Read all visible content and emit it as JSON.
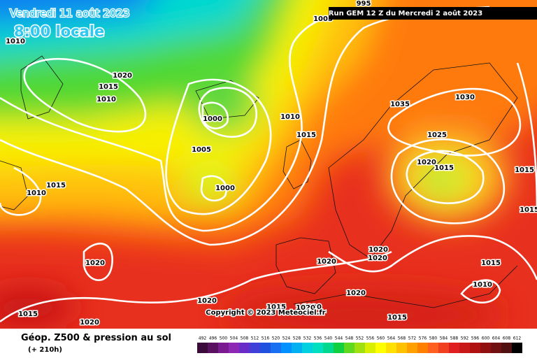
{
  "header": {
    "valid_date": "Vendredi 11 août 2023",
    "local_time": "8:00 locale",
    "run": "Run GEM 12 Z du Mercredi 2 août 2023"
  },
  "isobar_labels": [
    995,
    1005,
    1010,
    1020,
    1015,
    1010,
    1000,
    1010,
    1005,
    1015,
    1035,
    1030,
    1025,
    1020,
    1015,
    1015,
    1010,
    1000,
    1015,
    1015,
    1020,
    1020,
    1020,
    1020,
    1015,
    1010,
    1020,
    1020,
    1020,
    1015,
    1020,
    1015,
    1020,
    1015
  ],
  "copyright": "Copyright © 2023 Meteociel.fr",
  "legend": {
    "title": "Géop. Z500 & pression au sol",
    "lead_time": "(+ 210h)",
    "scale": [
      492,
      496,
      500,
      504,
      508,
      512,
      516,
      520,
      524,
      528,
      532,
      536,
      540,
      544,
      548,
      552,
      556,
      560,
      564,
      568,
      572,
      576,
      580,
      584,
      588,
      592,
      596,
      600,
      604,
      608,
      612
    ],
    "colors": [
      "#3a0a3a",
      "#5a1060",
      "#7a1a90",
      "#8c28b4",
      "#6a2cc8",
      "#4040d8",
      "#2050e0",
      "#1870f0",
      "#0090ff",
      "#00b0f0",
      "#00d0e0",
      "#00e0c0",
      "#00d890",
      "#10d040",
      "#60d820",
      "#a0e010",
      "#d8f000",
      "#ffff00",
      "#ffe000",
      "#ffc000",
      "#ffa000",
      "#ff8000",
      "#ff6020",
      "#f04020",
      "#e02020",
      "#c81818",
      "#b01010",
      "#901010",
      "#701010",
      "#501010",
      "#000000"
    ]
  }
}
